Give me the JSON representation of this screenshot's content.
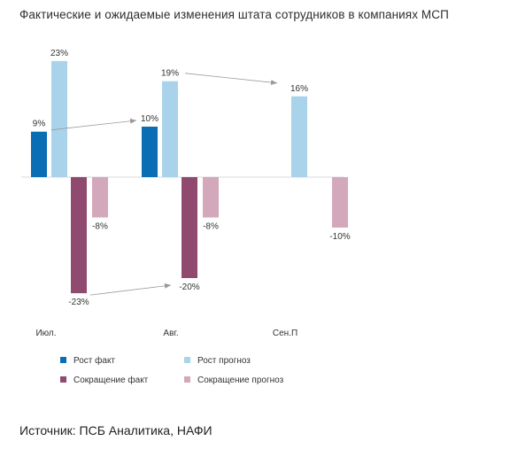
{
  "title": "Фактические и ожидаемые изменения штата сотрудников в компаниях МСП",
  "source": "Источник: ПСБ Аналитика, НАФИ",
  "colors": {
    "growth_fact": "#0a6eb5",
    "growth_forecast": "#a9d3ea",
    "cut_fact": "#914a6f",
    "cut_forecast": "#d3a8ba",
    "axis": "#d9d9d9",
    "arrow": "#9a9a9a"
  },
  "chart_data": {
    "type": "bar",
    "title": "Фактические и ожидаемые изменения штата сотрудников в компаниях МСП",
    "categories": [
      "Июл.",
      "Авг.",
      "Сен.П"
    ],
    "series": [
      {
        "name": "Рост факт",
        "values": [
          9,
          10,
          null
        ],
        "labels": [
          "9%",
          "10%",
          ""
        ],
        "color": "#0a6eb5"
      },
      {
        "name": "Рост прогноз",
        "values": [
          23,
          19,
          16
        ],
        "labels": [
          "23%",
          "19%",
          "16%"
        ],
        "color": "#a9d3ea"
      },
      {
        "name": "Сокращение факт",
        "values": [
          -23,
          -20,
          null
        ],
        "labels": [
          "-23%",
          "-20%",
          ""
        ],
        "color": "#914a6f"
      },
      {
        "name": "Сокращение прогноз",
        "values": [
          -8,
          -8,
          -10
        ],
        "labels": [
          "-8%",
          "-8%",
          "-10%"
        ],
        "color": "#d3a8ba"
      }
    ],
    "ylim": [
      -25,
      25
    ],
    "grid": false,
    "legend_position": "bottom",
    "annotations": [
      {
        "type": "arrow",
        "from": {
          "series": 0,
          "category": 0
        },
        "to": {
          "series": 0,
          "category": 1
        }
      },
      {
        "type": "arrow",
        "from": {
          "series": 1,
          "category": 1
        },
        "to": {
          "series": 1,
          "category": 2
        }
      },
      {
        "type": "arrow",
        "from": {
          "series": 2,
          "category": 0
        },
        "to": {
          "series": 2,
          "category": 1
        }
      }
    ]
  },
  "legend": [
    {
      "label": "Рост факт",
      "color": "#0a6eb5"
    },
    {
      "label": "Рост прогноз",
      "color": "#a9d3ea"
    },
    {
      "label": "Сокращение факт",
      "color": "#914a6f"
    },
    {
      "label": "Сокращение прогноз",
      "color": "#d3a8ba"
    }
  ]
}
